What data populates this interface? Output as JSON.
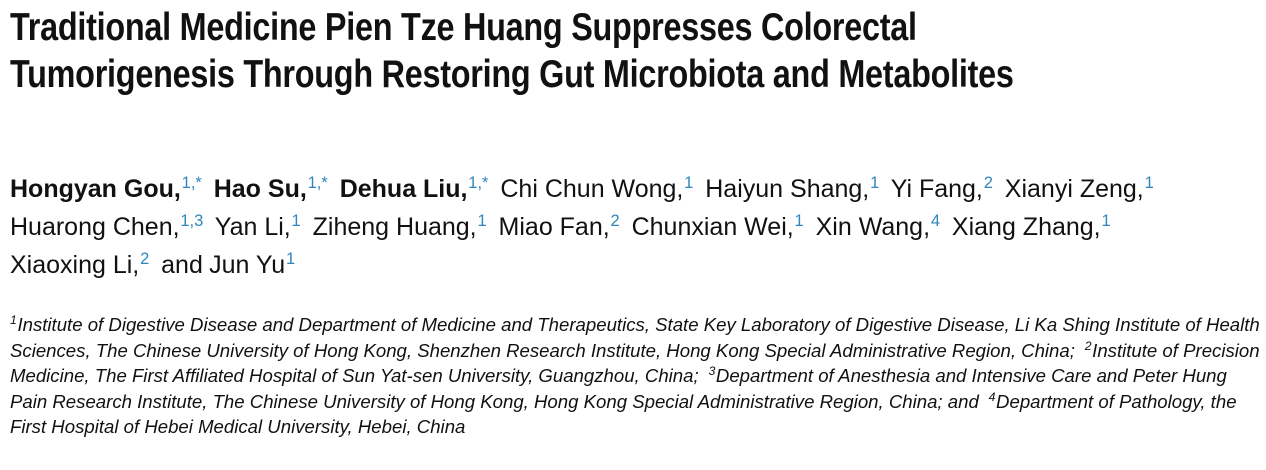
{
  "title": "Traditional Medicine Pien Tze Huang Suppresses Colorectal Tumorigenesis Through Restoring Gut Microbiota and Metabolites",
  "authors": [
    {
      "name": "Hongyan Gou,",
      "sup": "1,*",
      "bold": true
    },
    {
      "name": "Hao Su,",
      "sup": "1,*",
      "bold": true
    },
    {
      "name": "Dehua Liu,",
      "sup": "1,*",
      "bold": true
    },
    {
      "name": "Chi Chun Wong,",
      "sup": "1",
      "bold": false
    },
    {
      "name": "Haiyun Shang,",
      "sup": "1",
      "bold": false
    },
    {
      "name": "Yi Fang,",
      "sup": "2",
      "bold": false
    },
    {
      "name": "Xianyi Zeng,",
      "sup": "1",
      "bold": false
    },
    {
      "name": "Huarong Chen,",
      "sup": "1,3",
      "bold": false
    },
    {
      "name": "Yan Li,",
      "sup": "1",
      "bold": false
    },
    {
      "name": "Ziheng Huang,",
      "sup": "1",
      "bold": false
    },
    {
      "name": "Miao Fan,",
      "sup": "2",
      "bold": false
    },
    {
      "name": "Chunxian Wei,",
      "sup": "1",
      "bold": false
    },
    {
      "name": "Xin Wang,",
      "sup": "4",
      "bold": false
    },
    {
      "name": "Xiang Zhang,",
      "sup": "1",
      "bold": false
    },
    {
      "name": "Xiaoxing Li,",
      "sup": "2",
      "bold": false
    },
    {
      "prefix": "and",
      "name": "Jun Yu",
      "sup": "1",
      "bold": false
    }
  ],
  "affiliations": [
    {
      "sup": "1",
      "text": "Institute of Digestive Disease and Department of Medicine and Therapeutics, State Key Laboratory of Digestive Disease, Li Ka Shing Institute of Health Sciences, The Chinese University of Hong Kong, Shenzhen Research Institute, Hong Kong Special Administrative Region, China;"
    },
    {
      "sup": "2",
      "text": "Institute of Precision Medicine, The First Affiliated Hospital of Sun Yat-sen University, Guangzhou, China;"
    },
    {
      "sup": "3",
      "text": "Department of Anesthesia and Intensive Care and Peter Hung Pain Research Institute, The Chinese University of Hong Kong, Hong Kong Special Administrative Region, China; and"
    },
    {
      "sup": "4",
      "text": "Department of Pathology, the First Hospital of Hebei Medical University, Hebei, China"
    }
  ]
}
